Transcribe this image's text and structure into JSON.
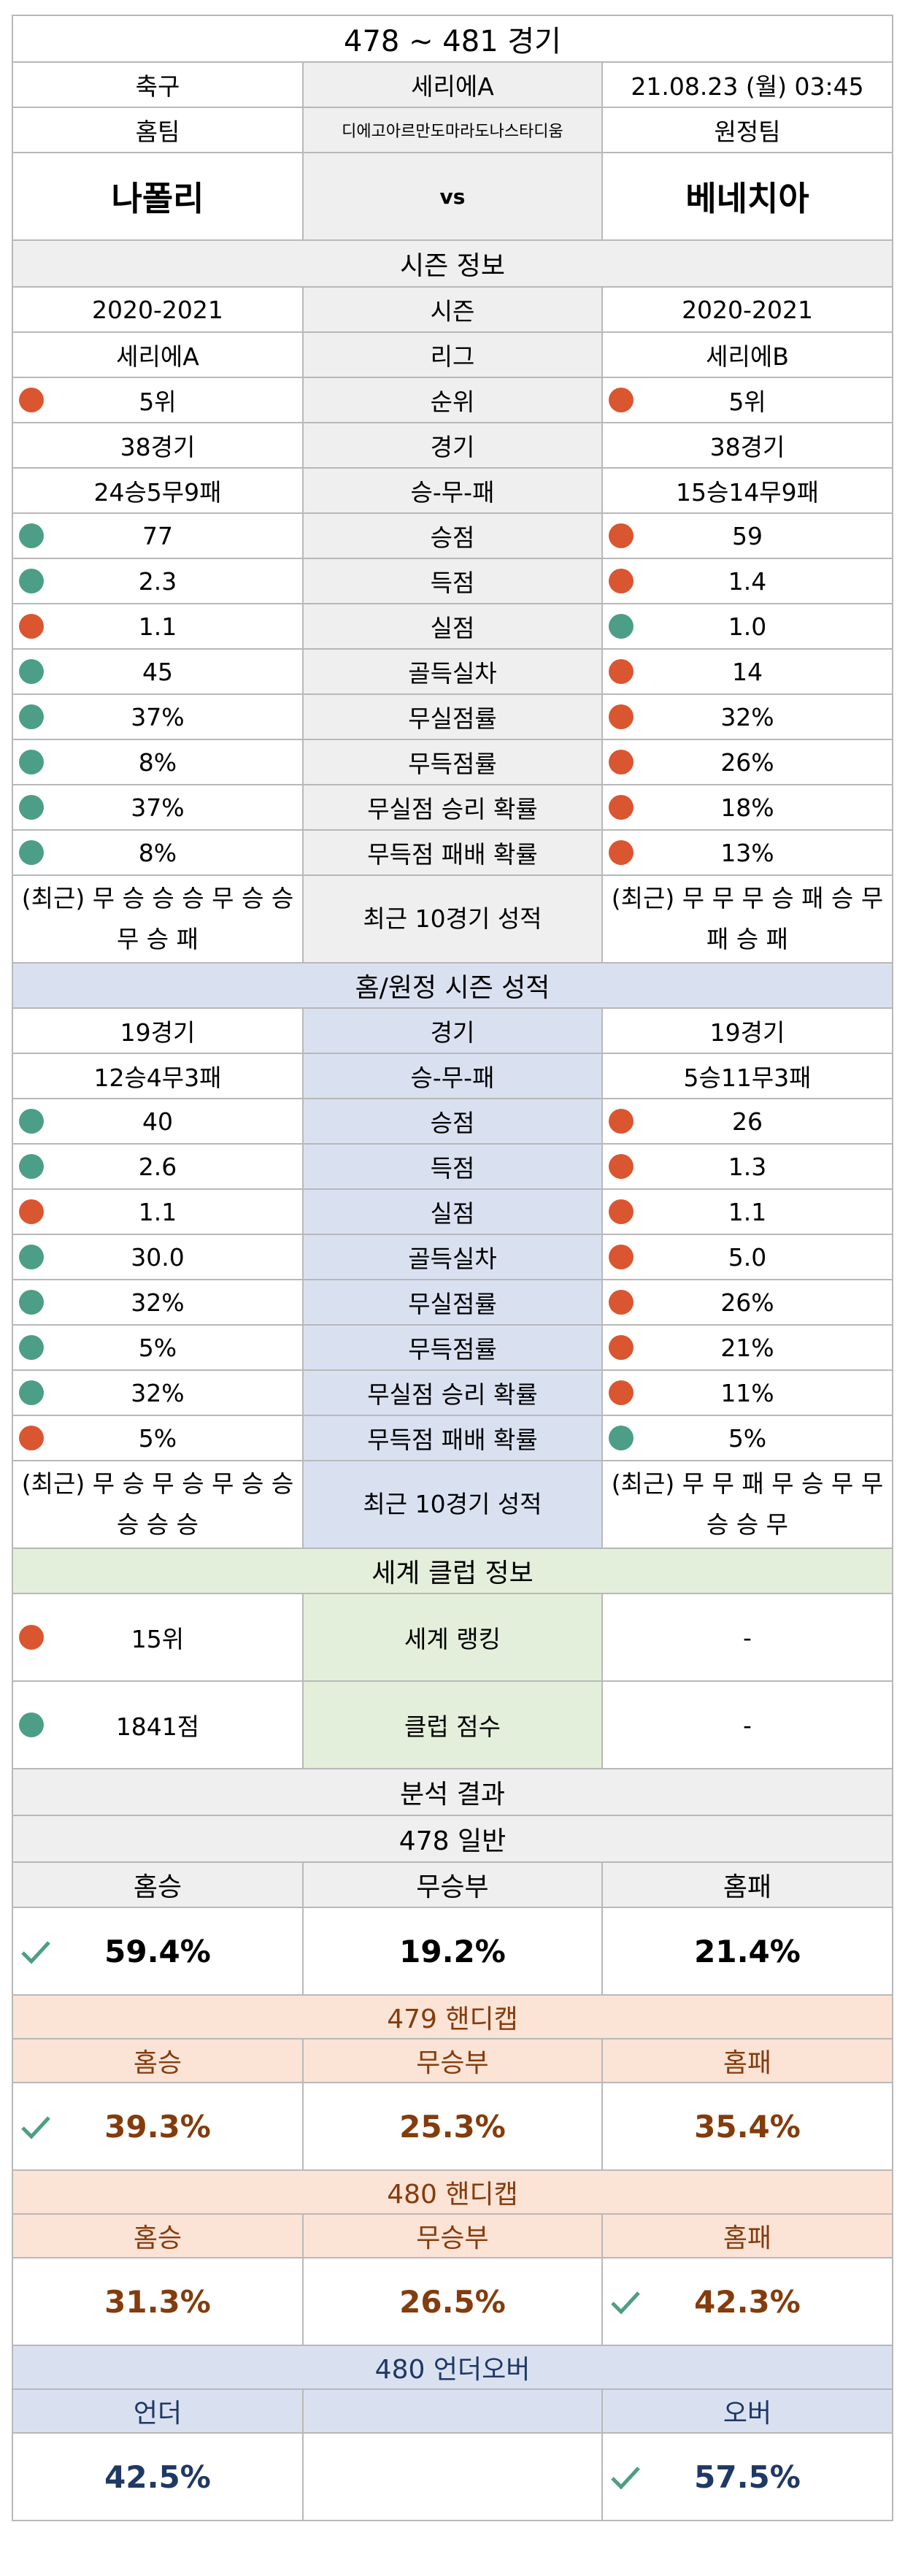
{
  "header": {
    "title": "478 ~ 481 경기",
    "sport": "축구",
    "league": "세리에A",
    "datetime": "21.08.23 (월) 03:45",
    "home_label": "홈팀",
    "venue": "디에고아르만도마라도나스타디움",
    "away_label": "원정팀",
    "home_team": "나폴리",
    "vs": "vs",
    "away_team": "베네치아"
  },
  "season": {
    "title": "시즌 정보",
    "rows": [
      {
        "home": "2020-2021",
        "label": "시즌",
        "away": "2020-2021"
      },
      {
        "home": "세리에A",
        "label": "리그",
        "away": "세리에B"
      },
      {
        "home": "5위",
        "label": "순위",
        "away": "5위",
        "home_dot": "r",
        "away_dot": "r"
      },
      {
        "home": "38경기",
        "label": "경기",
        "away": "38경기"
      },
      {
        "home": "24승5무9패",
        "label": "승-무-패",
        "away": "15승14무9패"
      },
      {
        "home": "77",
        "label": "승점",
        "away": "59",
        "home_dot": "g",
        "away_dot": "r"
      },
      {
        "home": "2.3",
        "label": "득점",
        "away": "1.4",
        "home_dot": "g",
        "away_dot": "r"
      },
      {
        "home": "1.1",
        "label": "실점",
        "away": "1.0",
        "home_dot": "r",
        "away_dot": "g"
      },
      {
        "home": "45",
        "label": "골득실차",
        "away": "14",
        "home_dot": "g",
        "away_dot": "r"
      },
      {
        "home": "37%",
        "label": "무실점률",
        "away": "32%",
        "home_dot": "g",
        "away_dot": "r"
      },
      {
        "home": "8%",
        "label": "무득점률",
        "away": "26%",
        "home_dot": "g",
        "away_dot": "r"
      },
      {
        "home": "37%",
        "label": "무실점 승리 확률",
        "away": "18%",
        "home_dot": "g",
        "away_dot": "r"
      },
      {
        "home": "8%",
        "label": "무득점 패배 확률",
        "away": "13%",
        "home_dot": "g",
        "away_dot": "r"
      }
    ],
    "recent": {
      "home": "(최근) 무 승 승 승 무 승 승 무 승 패",
      "label": "최근 10경기 성적",
      "away": "(최근) 무 무 무 승 패 승 무 패 승 패"
    }
  },
  "homeaway": {
    "title": "홈/원정 시즌 성적",
    "rows": [
      {
        "home": "19경기",
        "label": "경기",
        "away": "19경기"
      },
      {
        "home": "12승4무3패",
        "label": "승-무-패",
        "away": "5승11무3패"
      },
      {
        "home": "40",
        "label": "승점",
        "away": "26",
        "home_dot": "g",
        "away_dot": "r"
      },
      {
        "home": "2.6",
        "label": "득점",
        "away": "1.3",
        "home_dot": "g",
        "away_dot": "r"
      },
      {
        "home": "1.1",
        "label": "실점",
        "away": "1.1",
        "home_dot": "r",
        "away_dot": "r"
      },
      {
        "home": "30.0",
        "label": "골득실차",
        "away": "5.0",
        "home_dot": "g",
        "away_dot": "r"
      },
      {
        "home": "32%",
        "label": "무실점률",
        "away": "26%",
        "home_dot": "g",
        "away_dot": "r"
      },
      {
        "home": "5%",
        "label": "무득점률",
        "away": "21%",
        "home_dot": "g",
        "away_dot": "r"
      },
      {
        "home": "32%",
        "label": "무실점 승리 확률",
        "away": "11%",
        "home_dot": "g",
        "away_dot": "r"
      },
      {
        "home": "5%",
        "label": "무득점 패배 확률",
        "away": "5%",
        "home_dot": "r",
        "away_dot": "g"
      }
    ],
    "recent": {
      "home": "(최근) 무 승 무 승 무 승 승 승 승 승",
      "label": "최근 10경기 성적",
      "away": "(최근) 무 무 패 무 승 무 무 승 승 무"
    }
  },
  "world": {
    "title": "세계 클럽 정보",
    "rows": [
      {
        "home": "15위",
        "label": "세계 랭킹",
        "away": "-",
        "home_dot": "r"
      },
      {
        "home": "1841점",
        "label": "클럽 점수",
        "away": "-",
        "home_dot": "g"
      }
    ]
  },
  "analysis": {
    "title": "분석 결과",
    "general": {
      "title": "478 일반",
      "labels": [
        "홈승",
        "무승부",
        "홈패"
      ],
      "values": [
        "59.4%",
        "19.2%",
        "21.4%"
      ],
      "check": 0
    },
    "handicap1": {
      "title": "479 핸디캡",
      "labels": [
        "홈승",
        "무승부",
        "홈패"
      ],
      "values": [
        "39.3%",
        "25.3%",
        "35.4%"
      ],
      "check": 0
    },
    "handicap2": {
      "title": "480 핸디캡",
      "labels": [
        "홈승",
        "무승부",
        "홈패"
      ],
      "values": [
        "31.3%",
        "26.5%",
        "42.3%"
      ],
      "check": 2
    },
    "underover": {
      "title": "480 언더오버",
      "labels": [
        "언더",
        "",
        "오버"
      ],
      "values": [
        "42.5%",
        "",
        "57.5%"
      ],
      "check": 2
    }
  },
  "colors": {
    "good": "#4d9e86",
    "bad": "#d95630",
    "check": "#4d9e86"
  }
}
